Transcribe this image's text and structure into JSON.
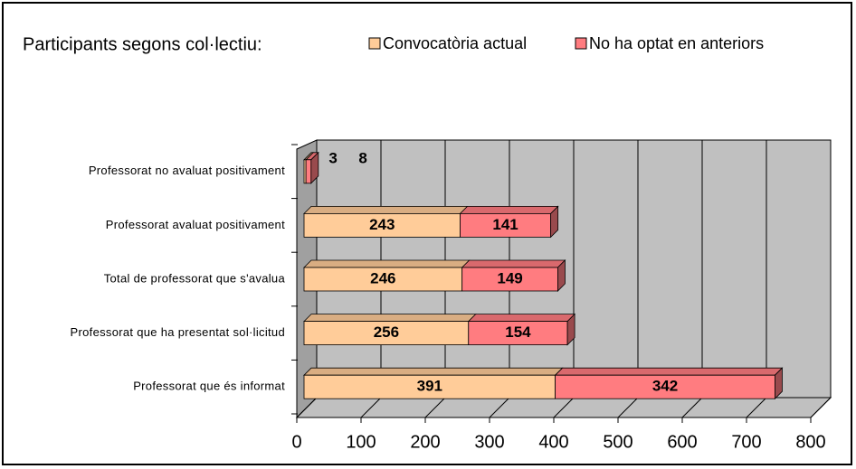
{
  "chart_data": {
    "type": "bar",
    "stacked": true,
    "orientation": "horizontal",
    "title": "Participants segons col·lectiu:",
    "categories": [
      "Professorat no avaluat positivament",
      "Professorat avaluat positivament",
      "Total de professorat que s'avalua",
      "Professorat que ha presentat sol·licitud",
      "Professorat que és informat"
    ],
    "series": [
      {
        "name": "Convocatòria actual",
        "color": "#ffcc99",
        "values": [
          3,
          243,
          246,
          256,
          391
        ]
      },
      {
        "name": "No ha optat en anteriors",
        "color": "#ff7c80",
        "values": [
          8,
          141,
          149,
          154,
          342
        ]
      }
    ],
    "xlim": [
      0,
      800
    ],
    "xticks": [
      0,
      100,
      200,
      300,
      400,
      500,
      600,
      700,
      800
    ],
    "grid": true
  }
}
